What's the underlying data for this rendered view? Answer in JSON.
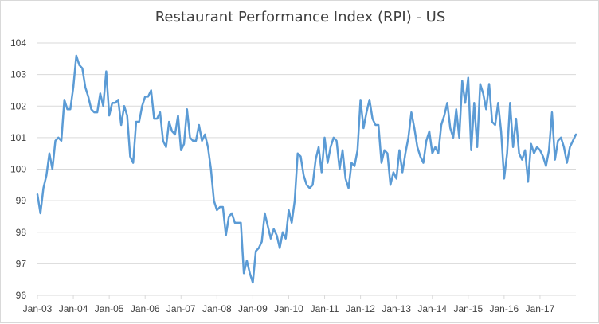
{
  "chart_data": {
    "type": "line",
    "title": "Restaurant Performance Index (RPI) - US",
    "xlabel": "",
    "ylabel": "",
    "ylim": [
      96,
      104
    ],
    "yticks": [
      96,
      97,
      98,
      99,
      100,
      101,
      102,
      103,
      104
    ],
    "xticks": [
      "Jan-03",
      "Jan-04",
      "Jan-05",
      "Jan-06",
      "Jan-07",
      "Jan-08",
      "Jan-09",
      "Jan-10",
      "Jan-11",
      "Jan-12",
      "Jan-13",
      "Jan-14",
      "Jan-15",
      "Jan-16",
      "Jan-17"
    ],
    "grid": "horizontal",
    "legend": "none",
    "line_color": "#5b9bd5",
    "series": [
      {
        "values": [
          99.2,
          98.6,
          99.4,
          99.8,
          100.5,
          100.0,
          100.9,
          101.0,
          100.9,
          102.2,
          101.9,
          101.9,
          102.6,
          103.6,
          103.3,
          103.2,
          102.6,
          102.3,
          101.9,
          101.8,
          101.8,
          102.4,
          102.0,
          103.1,
          101.7,
          102.1,
          102.1,
          102.2,
          101.4,
          102.0,
          101.7,
          100.4,
          100.2,
          101.5,
          101.5,
          102.0,
          102.3,
          102.3,
          102.5,
          101.6,
          101.6,
          101.8,
          100.9,
          100.7,
          101.5,
          101.2,
          101.1,
          101.7,
          100.6,
          100.8,
          101.9,
          101.0,
          100.9,
          100.9,
          101.4,
          100.9,
          101.1,
          100.7,
          100.0,
          99.0,
          98.7,
          98.8,
          98.8,
          97.9,
          98.5,
          98.6,
          98.3,
          98.3,
          98.3,
          96.7,
          97.1,
          96.7,
          96.4,
          97.4,
          97.5,
          97.7,
          98.6,
          98.2,
          97.8,
          98.1,
          97.9,
          97.5,
          98.0,
          97.8,
          98.7,
          98.3,
          99.0,
          100.5,
          100.4,
          99.8,
          99.5,
          99.4,
          99.5,
          100.3,
          100.7,
          99.9,
          101.0,
          100.2,
          100.7,
          101.0,
          100.9,
          100.0,
          100.6,
          99.7,
          99.4,
          100.2,
          100.1,
          100.6,
          102.2,
          101.3,
          101.8,
          102.2,
          101.6,
          101.4,
          101.4,
          100.2,
          100.6,
          100.5,
          99.5,
          99.9,
          99.7,
          100.6,
          99.9,
          100.5,
          101.0,
          101.8,
          101.3,
          100.7,
          100.4,
          100.2,
          100.9,
          101.2,
          100.5,
          100.7,
          100.5,
          101.4,
          101.7,
          102.1,
          101.3,
          101.0,
          101.9,
          101.0,
          102.8,
          102.1,
          102.9,
          100.6,
          102.1,
          100.7,
          102.7,
          102.4,
          101.9,
          102.7,
          101.5,
          101.4,
          102.1,
          101.2,
          99.7,
          100.5,
          102.1,
          100.7,
          101.6,
          100.5,
          100.3,
          100.6,
          99.6,
          100.8,
          100.5,
          100.7,
          100.6,
          100.4,
          100.1,
          100.6,
          101.8,
          100.3,
          100.9,
          101.0,
          100.7,
          100.2,
          100.7,
          100.9,
          101.1
        ]
      }
    ]
  }
}
